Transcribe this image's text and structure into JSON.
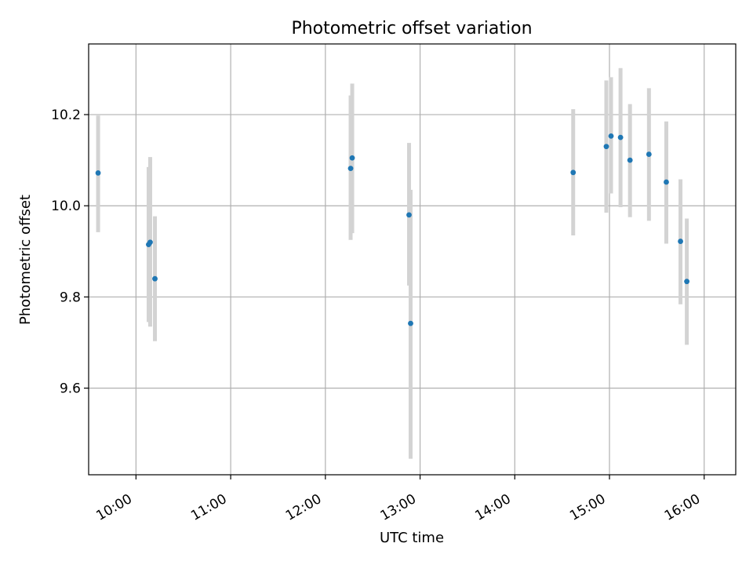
{
  "chart_data": {
    "type": "scatter",
    "title": "Photometric offset variation",
    "xlabel": "UTC time",
    "ylabel": "Photometric offset",
    "xlim": [
      "09:30",
      "16:20"
    ],
    "ylim": [
      9.41,
      10.355
    ],
    "xticks": [
      "10:00",
      "11:00",
      "12:00",
      "13:00",
      "14:00",
      "15:00",
      "16:00"
    ],
    "yticks": [
      9.6,
      9.8,
      10.0,
      10.2
    ],
    "ytick_labels": [
      "9.6",
      "9.8",
      "10.0",
      "10.2"
    ],
    "grid": true,
    "colors": {
      "point": "#1f77b4",
      "errorbar": "#d3d3d3"
    },
    "points": [
      {
        "x": "09:36",
        "y": 10.072,
        "low": 9.942,
        "high": 10.198
      },
      {
        "x": "10:08",
        "y": 9.915,
        "low": 9.745,
        "high": 10.085
      },
      {
        "x": "10:09",
        "y": 9.92,
        "low": 9.735,
        "high": 10.107
      },
      {
        "x": "10:12",
        "y": 9.84,
        "low": 9.703,
        "high": 9.977
      },
      {
        "x": "12:16",
        "y": 10.082,
        "low": 9.925,
        "high": 10.242
      },
      {
        "x": "12:17",
        "y": 10.105,
        "low": 9.94,
        "high": 10.268
      },
      {
        "x": "12:53",
        "y": 9.98,
        "low": 9.825,
        "high": 10.138
      },
      {
        "x": "12:54",
        "y": 9.742,
        "low": 9.445,
        "high": 10.035
      },
      {
        "x": "14:37",
        "y": 10.073,
        "low": 9.935,
        "high": 10.212
      },
      {
        "x": "14:58",
        "y": 10.13,
        "low": 9.985,
        "high": 10.275
      },
      {
        "x": "15:01",
        "y": 10.153,
        "low": 10.027,
        "high": 10.282
      },
      {
        "x": "15:07",
        "y": 10.15,
        "low": 9.997,
        "high": 10.302
      },
      {
        "x": "15:13",
        "y": 10.1,
        "low": 9.975,
        "high": 10.223
      },
      {
        "x": "15:25",
        "y": 10.113,
        "low": 9.967,
        "high": 10.258
      },
      {
        "x": "15:36",
        "y": 10.052,
        "low": 9.917,
        "high": 10.185
      },
      {
        "x": "15:45",
        "y": 9.922,
        "low": 9.784,
        "high": 10.058
      },
      {
        "x": "15:49",
        "y": 9.834,
        "low": 9.695,
        "high": 9.972
      }
    ]
  }
}
